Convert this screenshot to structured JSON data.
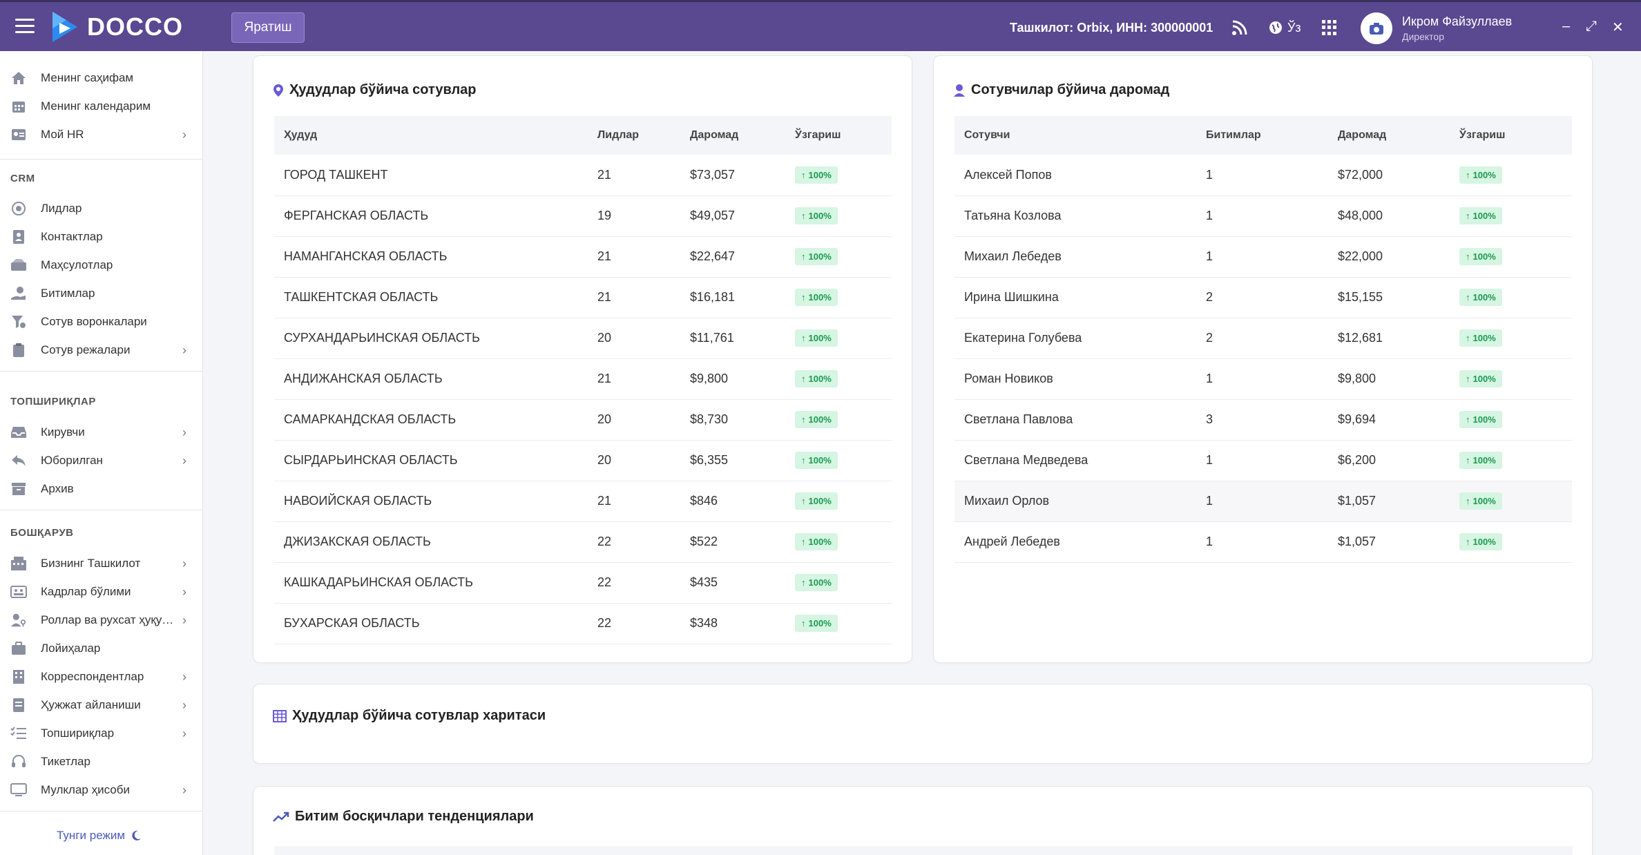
{
  "header": {
    "app_name": "DOCCO",
    "create_label": "Яратиш",
    "org_info": "Ташкилот: Orbix,   ИНН: 300000001",
    "lang": "Ўз",
    "user_name": "Икром Файзуллаев",
    "user_role": "Директор",
    "minimize": "–",
    "maximize": "⤢",
    "close": "✕"
  },
  "sidebar": {
    "items": [
      {
        "label": "Менинг саҳифам",
        "icon": "home-icon"
      },
      {
        "label": "Менинг календарим",
        "icon": "calendar-icon"
      },
      {
        "label": "Мой HR",
        "icon": "id-card-icon",
        "chevron": "›"
      },
      {
        "label": "Лидлар",
        "icon": "target-icon"
      },
      {
        "label": "Контактлар",
        "icon": "contact-icon"
      },
      {
        "label": "Маҳсулотлар",
        "icon": "products-icon"
      },
      {
        "label": "Битимлар",
        "icon": "deal-icon"
      },
      {
        "label": "Сотув воронкалари",
        "icon": "funnel-icon"
      },
      {
        "label": "Сотув режалари",
        "icon": "clipboard-icon",
        "chevron": "›"
      },
      {
        "label": "Кирувчи",
        "icon": "inbox-icon",
        "chevron": "›"
      },
      {
        "label": "Юборилган",
        "icon": "reply-icon",
        "chevron": "›"
      },
      {
        "label": "Архив",
        "icon": "archive-icon"
      },
      {
        "label": "Бизнинг Ташкилот",
        "icon": "building-icon",
        "chevron": "›"
      },
      {
        "label": "Кадрлар бўлими",
        "icon": "staff-icon",
        "chevron": "›"
      },
      {
        "label": "Роллар ва рухсат ҳуқу…",
        "icon": "user-key-icon",
        "chevron": "›"
      },
      {
        "label": "Лойиҳалар",
        "icon": "briefcase-icon"
      },
      {
        "label": "Корреспондентлар",
        "icon": "office-icon",
        "chevron": "›"
      },
      {
        "label": "Ҳужжат айланиши",
        "icon": "document-icon",
        "chevron": "›"
      },
      {
        "label": "Топшириқлар",
        "icon": "tasks-icon",
        "chevron": "›"
      },
      {
        "label": "Тикетлар",
        "icon": "headset-icon"
      },
      {
        "label": "Мулклар ҳисоби",
        "icon": "monitor-icon",
        "chevron": "›"
      }
    ],
    "sections": [
      "CRM",
      "ТОПШИРИҚЛАР",
      "БОШҚАРУВ"
    ],
    "night_mode": "Тунги режим"
  },
  "regions_card": {
    "title": "Ҳудудлар бўйича сотувлар",
    "columns": [
      "Ҳудуд",
      "Лидлар",
      "Даромад",
      "Ўзгариш"
    ],
    "rows": [
      [
        "ГОРОД ТАШКЕНТ",
        "21",
        "$73,057",
        "100%"
      ],
      [
        "ФЕРГАНСКАЯ ОБЛАСТЬ",
        "19",
        "$49,057",
        "100%"
      ],
      [
        "НАМАНГАНСКАЯ ОБЛАСТЬ",
        "21",
        "$22,647",
        "100%"
      ],
      [
        "ТАШКЕНТСКАЯ ОБЛАСТЬ",
        "21",
        "$16,181",
        "100%"
      ],
      [
        "СУРХАНДАРЬИНСКАЯ ОБЛАСТЬ",
        "20",
        "$11,761",
        "100%"
      ],
      [
        "АНДИЖАНСКАЯ ОБЛАСТЬ",
        "21",
        "$9,800",
        "100%"
      ],
      [
        "САМАРКАНДСКАЯ ОБЛАСТЬ",
        "20",
        "$8,730",
        "100%"
      ],
      [
        "СЫРДАРЬИНСКАЯ ОБЛАСТЬ",
        "20",
        "$6,355",
        "100%"
      ],
      [
        "НАВОИЙСКАЯ ОБЛАСТЬ",
        "21",
        "$846",
        "100%"
      ],
      [
        "ДЖИЗАКСКАЯ ОБЛАСТЬ",
        "22",
        "$522",
        "100%"
      ],
      [
        "КАШКАДАРЬИНСКАЯ ОБЛАСТЬ",
        "22",
        "$435",
        "100%"
      ],
      [
        "БУХАРСКАЯ ОБЛАСТЬ",
        "22",
        "$348",
        "100%"
      ]
    ]
  },
  "sellers_card": {
    "title": "Сотувчилар бўйича даромад",
    "columns": [
      "Сотувчи",
      "Битимлар",
      "Даромад",
      "Ўзгариш"
    ],
    "rows": [
      [
        "Алексей Попов",
        "1",
        "$72,000",
        "100%"
      ],
      [
        "Татьяна Козлова",
        "1",
        "$48,000",
        "100%"
      ],
      [
        "Михаил Лебедев",
        "1",
        "$22,000",
        "100%"
      ],
      [
        "Ирина Шишкина",
        "2",
        "$15,155",
        "100%"
      ],
      [
        "Екатерина Голубева",
        "2",
        "$12,681",
        "100%"
      ],
      [
        "Роман Новиков",
        "1",
        "$9,800",
        "100%"
      ],
      [
        "Светлана Павлова",
        "3",
        "$9,694",
        "100%"
      ],
      [
        "Светлана Медведева",
        "1",
        "$6,200",
        "100%"
      ],
      [
        "Михаил Орлов",
        "1",
        "$1,057",
        "100%"
      ],
      [
        "Андрей Лебедев",
        "1",
        "$1,057",
        "100%"
      ]
    ]
  },
  "map_card": {
    "title": "Ҳудудлар бўйича сотувлар харитаси"
  },
  "trends_card": {
    "title": "Битим босқичлари тенденциялари"
  },
  "colors": {
    "topbar": "#5a4890",
    "accent": "#6a5ad8",
    "badge_bg": "#d6f5e2",
    "badge_fg": "#1a9a50"
  }
}
